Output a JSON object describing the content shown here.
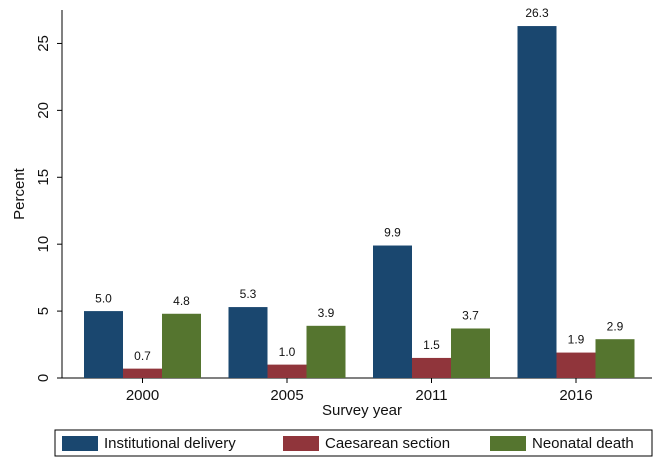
{
  "chart_data": {
    "type": "bar",
    "categories": [
      "2000",
      "2005",
      "2011",
      "2016"
    ],
    "x_label": "Survey year",
    "y_label": "Percent",
    "ylim": [
      0,
      27.5
    ],
    "yticks": [
      0,
      5,
      10,
      15,
      20,
      25
    ],
    "series": [
      {
        "name": "Institutional delivery",
        "color": "#1a476f",
        "values": [
          5,
          5.3,
          9.9,
          26.3
        ],
        "value_labels": [
          "5.0",
          "5.3",
          "9.9",
          "26.3"
        ]
      },
      {
        "name": "Caesarean section",
        "color": "#90353b",
        "values": [
          0.7,
          1,
          1.5,
          1.9
        ],
        "value_labels": [
          "0.7",
          "1.0",
          "1.5",
          "1.9"
        ]
      },
      {
        "name": "Neonatal death",
        "color": "#55752f",
        "values": [
          4.8,
          3.9,
          3.7,
          2.9
        ],
        "value_labels": [
          "4.8",
          "3.9",
          "3.7",
          "2.9"
        ]
      }
    ]
  }
}
